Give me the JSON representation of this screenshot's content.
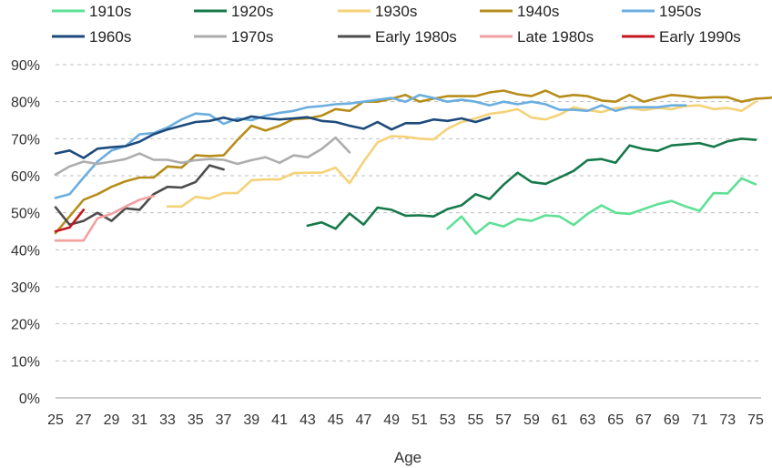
{
  "chart_data": {
    "type": "line",
    "xlabel": "Age",
    "ylabel": "",
    "xlim": [
      25,
      75
    ],
    "ylim": [
      0,
      0.9
    ],
    "x_ticks": [
      25,
      27,
      29,
      31,
      33,
      35,
      37,
      39,
      41,
      43,
      45,
      47,
      49,
      51,
      53,
      55,
      57,
      59,
      61,
      63,
      65,
      67,
      69,
      71,
      73,
      75
    ],
    "y_ticks": [
      "0%",
      "10%",
      "20%",
      "30%",
      "40%",
      "50%",
      "60%",
      "70%",
      "80%",
      "90%"
    ],
    "y_tick_values": [
      0,
      0.1,
      0.2,
      0.3,
      0.4,
      0.5,
      0.6,
      0.7,
      0.8,
      0.9
    ],
    "grid": "horizontal-dashed",
    "legend_position": "top",
    "series": [
      {
        "name": "1910s",
        "color": "#5ee095",
        "start": 53,
        "values": [
          0.457,
          0.49,
          0.443,
          0.473,
          0.463,
          0.483,
          0.478,
          0.493,
          0.49,
          0.467,
          0.497,
          0.52,
          0.5,
          0.497,
          0.51,
          0.523,
          0.532,
          0.517,
          0.505,
          0.553,
          0.552,
          0.593,
          0.577
        ]
      },
      {
        "name": "1920s",
        "color": "#16794a",
        "start": 43,
        "values": [
          0.465,
          0.474,
          0.457,
          0.498,
          0.468,
          0.514,
          0.508,
          0.492,
          0.493,
          0.49,
          0.51,
          0.52,
          0.55,
          0.537,
          0.576,
          0.608,
          0.583,
          0.578,
          0.595,
          0.613,
          0.642,
          0.645,
          0.635,
          0.682,
          0.672,
          0.667,
          0.682,
          0.685,
          0.688,
          0.678,
          0.693,
          0.7,
          0.697
        ]
      },
      {
        "name": "1930s",
        "color": "#f5d278",
        "start": 33,
        "values": [
          0.517,
          0.517,
          0.543,
          0.538,
          0.553,
          0.553,
          0.588,
          0.59,
          0.59,
          0.607,
          0.608,
          0.608,
          0.622,
          0.58,
          0.638,
          0.69,
          0.707,
          0.705,
          0.7,
          0.698,
          0.727,
          0.745,
          0.755,
          0.767,
          0.772,
          0.78,
          0.757,
          0.752,
          0.765,
          0.785,
          0.777,
          0.772,
          0.783,
          0.783,
          0.777,
          0.783,
          0.78,
          0.788,
          0.79,
          0.78,
          0.783,
          0.775,
          0.8
        ]
      },
      {
        "name": "1940s",
        "color": "#b78d1a",
        "start": 25,
        "values": [
          0.445,
          0.49,
          0.535,
          0.55,
          0.57,
          0.585,
          0.595,
          0.595,
          0.625,
          0.622,
          0.655,
          0.653,
          0.655,
          0.697,
          0.735,
          0.722,
          0.735,
          0.753,
          0.755,
          0.762,
          0.78,
          0.775,
          0.8,
          0.8,
          0.808,
          0.818,
          0.8,
          0.808,
          0.815,
          0.815,
          0.815,
          0.825,
          0.83,
          0.82,
          0.815,
          0.83,
          0.813,
          0.818,
          0.815,
          0.803,
          0.8,
          0.818,
          0.8,
          0.81,
          0.818,
          0.815,
          0.81,
          0.812,
          0.812,
          0.8,
          0.808,
          0.81,
          0.82
        ]
      },
      {
        "name": "1950s",
        "color": "#6aaee0",
        "start": 25,
        "values": [
          0.54,
          0.55,
          0.595,
          0.638,
          0.668,
          0.68,
          0.712,
          0.715,
          0.73,
          0.752,
          0.768,
          0.765,
          0.74,
          0.755,
          0.75,
          0.762,
          0.77,
          0.775,
          0.785,
          0.788,
          0.793,
          0.795,
          0.8,
          0.805,
          0.81,
          0.8,
          0.818,
          0.81,
          0.8,
          0.805,
          0.8,
          0.79,
          0.8,
          0.793,
          0.8,
          0.793,
          0.778,
          0.778,
          0.775,
          0.79,
          0.775,
          0.785,
          0.785,
          0.785,
          0.79,
          0.79
        ]
      },
      {
        "name": "1960s",
        "color": "#1d4a7c",
        "start": 25,
        "values": [
          0.66,
          0.668,
          0.648,
          0.673,
          0.677,
          0.68,
          0.692,
          0.712,
          0.725,
          0.735,
          0.745,
          0.748,
          0.757,
          0.748,
          0.76,
          0.755,
          0.752,
          0.755,
          0.758,
          0.748,
          0.745,
          0.735,
          0.727,
          0.745,
          0.725,
          0.742,
          0.742,
          0.752,
          0.748,
          0.755,
          0.745,
          0.757
        ]
      },
      {
        "name": "1970s",
        "color": "#adadad",
        "start": 25,
        "values": [
          0.603,
          0.625,
          0.638,
          0.632,
          0.638,
          0.645,
          0.66,
          0.643,
          0.643,
          0.635,
          0.642,
          0.645,
          0.643,
          0.632,
          0.642,
          0.65,
          0.635,
          0.655,
          0.65,
          0.672,
          0.703,
          0.663
        ]
      },
      {
        "name": "Early 1980s",
        "color": "#4d4d4d",
        "start": 25,
        "values": [
          0.515,
          0.468,
          0.478,
          0.5,
          0.478,
          0.512,
          0.508,
          0.55,
          0.57,
          0.568,
          0.583,
          0.628,
          0.617
        ]
      },
      {
        "name": "Late 1980s",
        "color": "#f2a0a0",
        "start": 25,
        "values": [
          0.425,
          0.425,
          0.425,
          0.485,
          0.497,
          0.517,
          0.535,
          0.545
        ]
      },
      {
        "name": "Early 1990s",
        "color": "#c4161c",
        "start": 25,
        "values": [
          0.45,
          0.46,
          0.508
        ]
      }
    ]
  }
}
